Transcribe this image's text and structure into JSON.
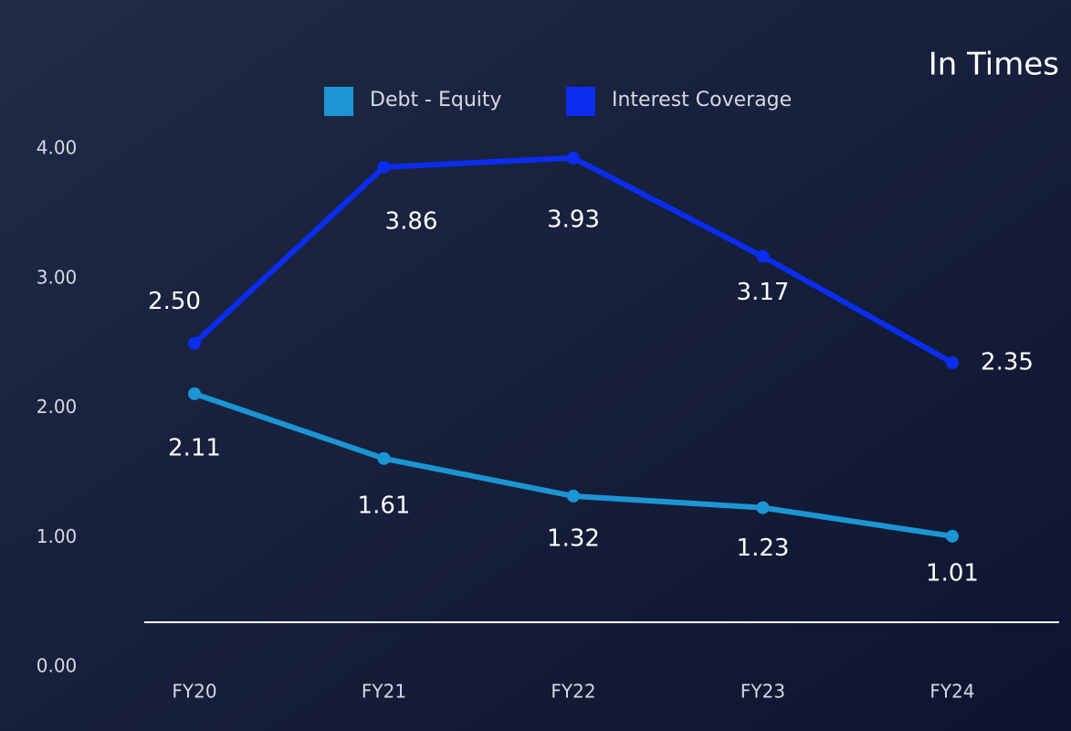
{
  "chart_data": {
    "type": "line",
    "annotation": "In Times",
    "categories": [
      "FY20",
      "FY21",
      "FY22",
      "FY23",
      "FY24"
    ],
    "series": [
      {
        "name": "Debt - Equity",
        "color": "#1b95d3",
        "values": [
          2.11,
          1.61,
          1.32,
          1.23,
          1.01
        ]
      },
      {
        "name": "Interest Coverage",
        "color": "#0b2df0",
        "values": [
          2.5,
          3.86,
          3.93,
          3.17,
          2.35
        ],
        "value_labels": [
          "2.50",
          "3.86",
          "3.93",
          "3.17",
          "2.35"
        ]
      }
    ],
    "ylim": [
      0,
      4
    ],
    "yticks": [
      {
        "value": 0,
        "label": "0.00"
      },
      {
        "value": 1,
        "label": "1.00"
      },
      {
        "value": 2,
        "label": "2.00"
      },
      {
        "value": 3,
        "label": "3.00"
      },
      {
        "value": 4,
        "label": "4.00"
      }
    ],
    "legend": "top"
  }
}
